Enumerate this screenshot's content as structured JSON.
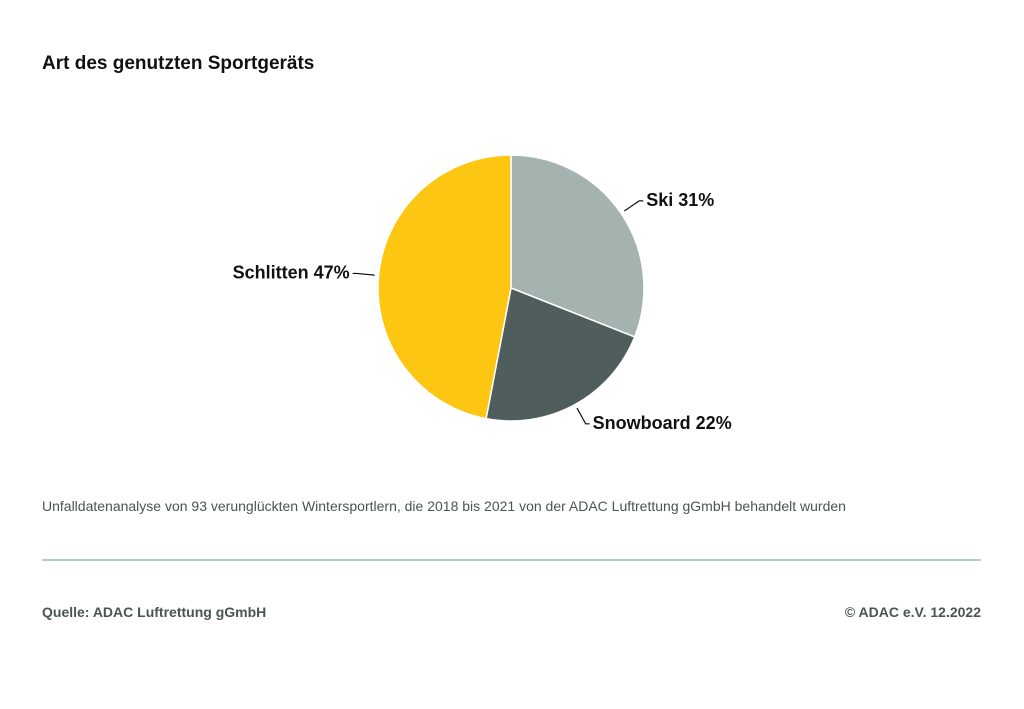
{
  "chart_data": {
    "type": "pie",
    "title": "Art des genutzten Sportgeräts",
    "categories": [
      "Ski",
      "Snowboard",
      "Schlitten"
    ],
    "values": [
      31,
      22,
      47
    ],
    "value_labels": [
      "31%",
      "22%",
      "47%"
    ],
    "colors": [
      "#a5b3b0",
      "#4f5e5d",
      "#fcc612"
    ],
    "note": "Unfalldatenanalyse von 93 verunglückten Wintersportlern, die 2018 bis 2021 von der ADAC Luftrettung gGmbH behandelt wurden",
    "source": "Quelle: ADAC Luftrettung gGmbH",
    "copyright": "© ADAC e.V. 12.2022"
  }
}
